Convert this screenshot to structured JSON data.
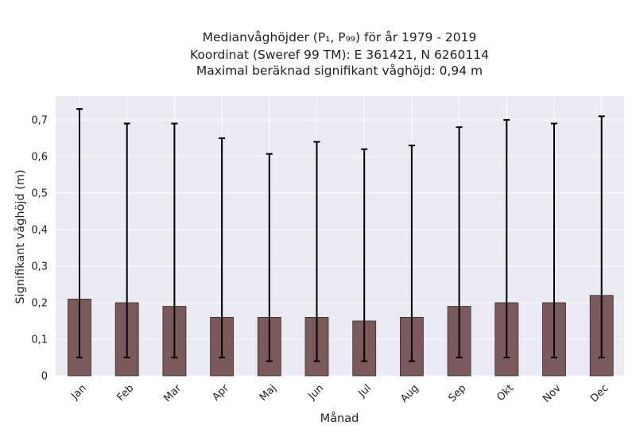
{
  "chart_data": {
    "type": "bar",
    "title_lines": [
      "Medianvåghöjder (P₁, P₉₉) för år 1979 - 2019",
      "Koordinat (Sweref 99 TM): E 361421, N 6260114",
      "Maximal beräknad signifikant våghöjd: 0,94 m"
    ],
    "xlabel": "Månad",
    "ylabel": "Signifikant våghöjd (m)",
    "categories": [
      "Jan",
      "Feb",
      "Mar",
      "Apr",
      "Maj",
      "Jun",
      "Jul",
      "Aug",
      "Sep",
      "Okt",
      "Nov",
      "Dec"
    ],
    "values": [
      0.21,
      0.2,
      0.19,
      0.16,
      0.16,
      0.16,
      0.15,
      0.16,
      0.19,
      0.2,
      0.2,
      0.22
    ],
    "error_low": [
      0.05,
      0.05,
      0.05,
      0.05,
      0.04,
      0.04,
      0.04,
      0.04,
      0.05,
      0.05,
      0.05,
      0.05
    ],
    "error_high": [
      0.73,
      0.69,
      0.69,
      0.65,
      0.607,
      0.64,
      0.62,
      0.63,
      0.68,
      0.7,
      0.69,
      0.71
    ],
    "yticks": [
      0,
      0.1,
      0.2,
      0.3,
      0.4,
      0.5,
      0.6,
      0.7
    ],
    "ytick_labels": [
      "0",
      "0,1",
      "0,2",
      "0,3",
      "0,4",
      "0,5",
      "0,6",
      "0,7"
    ],
    "ylim": [
      0,
      0.765
    ],
    "grid": true,
    "colors": {
      "bar_fill": "#7b5a5c",
      "bar_edge": "#3a2a2b",
      "plot_background": "#eaeaf2",
      "grid": "#ffffff",
      "error_bar": "#000000"
    }
  }
}
